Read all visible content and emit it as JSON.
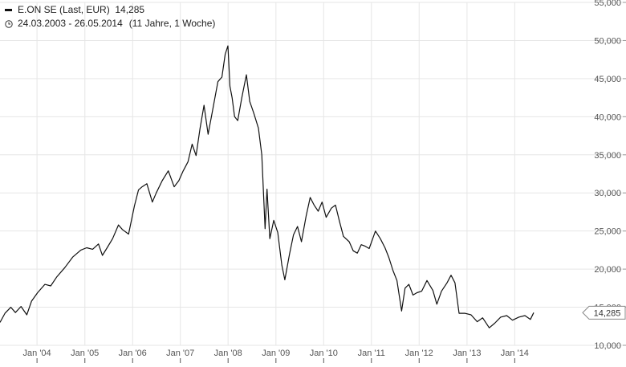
{
  "legend": {
    "series_name": "E.ON SE (Last, EUR)",
    "last_value": "14,285",
    "date_range": "24.03.2003 - 26.05.2014",
    "period": "(11 Jahre, 1 Woche)"
  },
  "colors": {
    "line": "#111111",
    "grid": "#e6e6e6",
    "axis_text": "#555555",
    "badge_border": "#888888"
  },
  "chart_data": {
    "type": "line",
    "title": "",
    "xlabel": "",
    "ylabel": "",
    "xlim": [
      "2003-03-24",
      "2014-05-26"
    ],
    "ylim": [
      10000,
      55000
    ],
    "grid": true,
    "last_value_label": "14,285",
    "x_tick_labels": [
      "Jan '04",
      "Jan '05",
      "Jan '06",
      "Jan '07",
      "Jan '08",
      "Jan '09",
      "Jan '10",
      "Jan '11",
      "Jan '12",
      "Jan '13",
      "Jan '14"
    ],
    "y_tick_labels": [
      "10,000",
      "15,000",
      "20,000",
      "25,000",
      "30,000",
      "35,000",
      "40,000",
      "45,000",
      "50,000",
      "55,000"
    ],
    "series": [
      {
        "name": "E.ON SE (Last, EUR)",
        "points": [
          [
            "2003-03-24",
            13000
          ],
          [
            "2003-05-01",
            14200
          ],
          [
            "2003-06-15",
            15000
          ],
          [
            "2003-07-20",
            14300
          ],
          [
            "2003-09-01",
            15100
          ],
          [
            "2003-10-15",
            14000
          ],
          [
            "2003-11-20",
            15800
          ],
          [
            "2004-01-05",
            16900
          ],
          [
            "2004-03-01",
            18000
          ],
          [
            "2004-04-15",
            17800
          ],
          [
            "2004-06-01",
            19000
          ],
          [
            "2004-08-01",
            20200
          ],
          [
            "2004-10-01",
            21600
          ],
          [
            "2004-12-01",
            22500
          ],
          [
            "2005-01-15",
            22800
          ],
          [
            "2005-03-01",
            22600
          ],
          [
            "2005-04-15",
            23300
          ],
          [
            "2005-05-15",
            21800
          ],
          [
            "2005-06-20",
            22800
          ],
          [
            "2005-08-01",
            24000
          ],
          [
            "2005-09-15",
            25800
          ],
          [
            "2005-10-15",
            25200
          ],
          [
            "2005-12-01",
            24600
          ],
          [
            "2006-01-15",
            28300
          ],
          [
            "2006-02-15",
            30400
          ],
          [
            "2006-03-15",
            30800
          ],
          [
            "2006-04-20",
            31200
          ],
          [
            "2006-06-01",
            28800
          ],
          [
            "2006-07-01",
            30000
          ],
          [
            "2006-08-15",
            31600
          ],
          [
            "2006-10-01",
            32900
          ],
          [
            "2006-11-15",
            30800
          ],
          [
            "2006-12-20",
            31600
          ],
          [
            "2007-01-20",
            32800
          ],
          [
            "2007-03-01",
            34100
          ],
          [
            "2007-04-01",
            36400
          ],
          [
            "2007-05-01",
            34900
          ],
          [
            "2007-06-01",
            38500
          ],
          [
            "2007-07-01",
            41500
          ],
          [
            "2007-08-01",
            37700
          ],
          [
            "2007-09-01",
            40500
          ],
          [
            "2007-10-15",
            44600
          ],
          [
            "2007-11-15",
            45200
          ],
          [
            "2007-12-10",
            48200
          ],
          [
            "2007-12-31",
            49300
          ],
          [
            "2008-01-15",
            44000
          ],
          [
            "2008-02-01",
            42500
          ],
          [
            "2008-02-20",
            40000
          ],
          [
            "2008-03-15",
            39500
          ],
          [
            "2008-04-15",
            42500
          ],
          [
            "2008-05-20",
            45500
          ],
          [
            "2008-06-15",
            42000
          ],
          [
            "2008-07-15",
            40500
          ],
          [
            "2008-08-20",
            38500
          ],
          [
            "2008-09-15",
            35000
          ],
          [
            "2008-10-10",
            25300
          ],
          [
            "2008-10-25",
            30500
          ],
          [
            "2008-11-15",
            24000
          ],
          [
            "2008-12-15",
            26400
          ],
          [
            "2009-01-15",
            24800
          ],
          [
            "2009-02-15",
            20500
          ],
          [
            "2009-03-10",
            18600
          ],
          [
            "2009-04-15",
            22000
          ],
          [
            "2009-05-15",
            24500
          ],
          [
            "2009-06-15",
            25600
          ],
          [
            "2009-07-15",
            23600
          ],
          [
            "2009-08-20",
            27000
          ],
          [
            "2009-09-20",
            29400
          ],
          [
            "2009-10-20",
            28400
          ],
          [
            "2009-11-20",
            27600
          ],
          [
            "2009-12-20",
            28800
          ],
          [
            "2010-01-20",
            26800
          ],
          [
            "2010-03-01",
            28000
          ],
          [
            "2010-04-01",
            28400
          ],
          [
            "2010-05-01",
            26300
          ],
          [
            "2010-06-01",
            24300
          ],
          [
            "2010-07-15",
            23600
          ],
          [
            "2010-08-15",
            22400
          ],
          [
            "2010-09-15",
            22100
          ],
          [
            "2010-10-15",
            23200
          ],
          [
            "2010-11-15",
            23000
          ],
          [
            "2010-12-15",
            22700
          ],
          [
            "2011-02-01",
            25000
          ],
          [
            "2011-03-10",
            24000
          ],
          [
            "2011-04-15",
            22800
          ],
          [
            "2011-05-15",
            21500
          ],
          [
            "2011-06-15",
            19800
          ],
          [
            "2011-07-15",
            18500
          ],
          [
            "2011-08-20",
            14500
          ],
          [
            "2011-09-15",
            17500
          ],
          [
            "2011-10-15",
            18000
          ],
          [
            "2011-11-15",
            16600
          ],
          [
            "2011-12-15",
            16900
          ],
          [
            "2012-01-20",
            17100
          ],
          [
            "2012-03-01",
            18500
          ],
          [
            "2012-04-15",
            17200
          ],
          [
            "2012-05-15",
            15400
          ],
          [
            "2012-06-20",
            17100
          ],
          [
            "2012-08-01",
            18200
          ],
          [
            "2012-09-01",
            19200
          ],
          [
            "2012-10-01",
            18200
          ],
          [
            "2012-11-01",
            14200
          ],
          [
            "2012-12-15",
            14200
          ],
          [
            "2013-02-01",
            14000
          ],
          [
            "2013-03-20",
            13100
          ],
          [
            "2013-05-01",
            13600
          ],
          [
            "2013-06-20",
            12300
          ],
          [
            "2013-08-01",
            12900
          ],
          [
            "2013-09-15",
            13700
          ],
          [
            "2013-11-01",
            13900
          ],
          [
            "2013-12-15",
            13300
          ],
          [
            "2014-02-01",
            13700
          ],
          [
            "2014-03-20",
            13900
          ],
          [
            "2014-05-01",
            13400
          ],
          [
            "2014-05-26",
            14285
          ]
        ]
      }
    ]
  }
}
